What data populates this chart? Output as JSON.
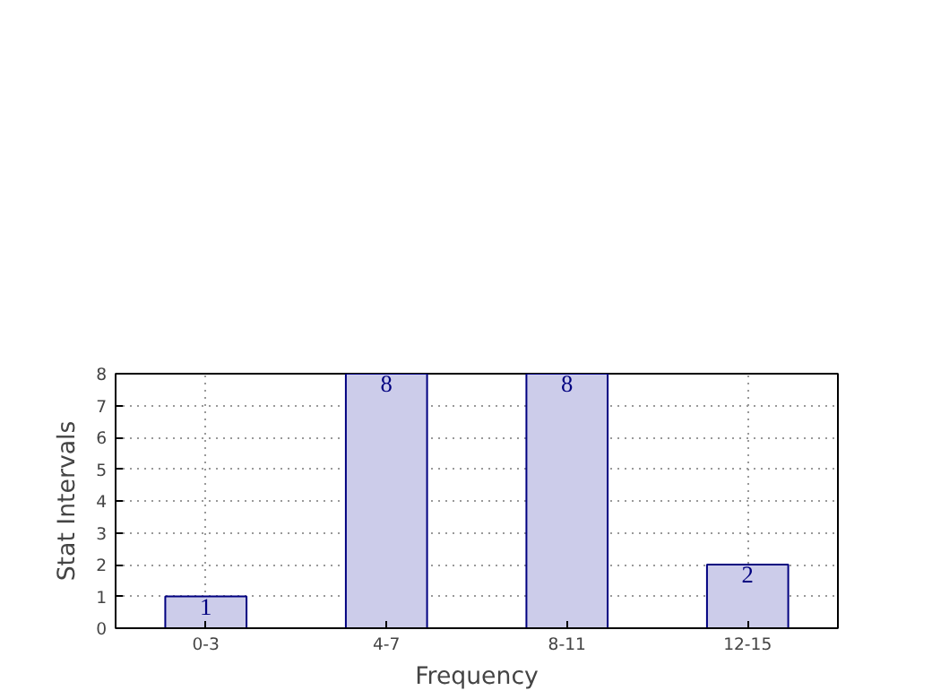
{
  "chart_data": {
    "type": "bar",
    "xlabel": "Frequency",
    "ylabel": "Stat Intervals",
    "categories": [
      "0-3",
      "4-7",
      "8-11",
      "12-15"
    ],
    "values": [
      1,
      8,
      8,
      2
    ],
    "color": "#ccccea",
    "ylim": [
      0,
      8
    ],
    "yticks": [
      0,
      1,
      2,
      3,
      4,
      5,
      6,
      7,
      8
    ],
    "grid": true,
    "data_labels": true
  }
}
